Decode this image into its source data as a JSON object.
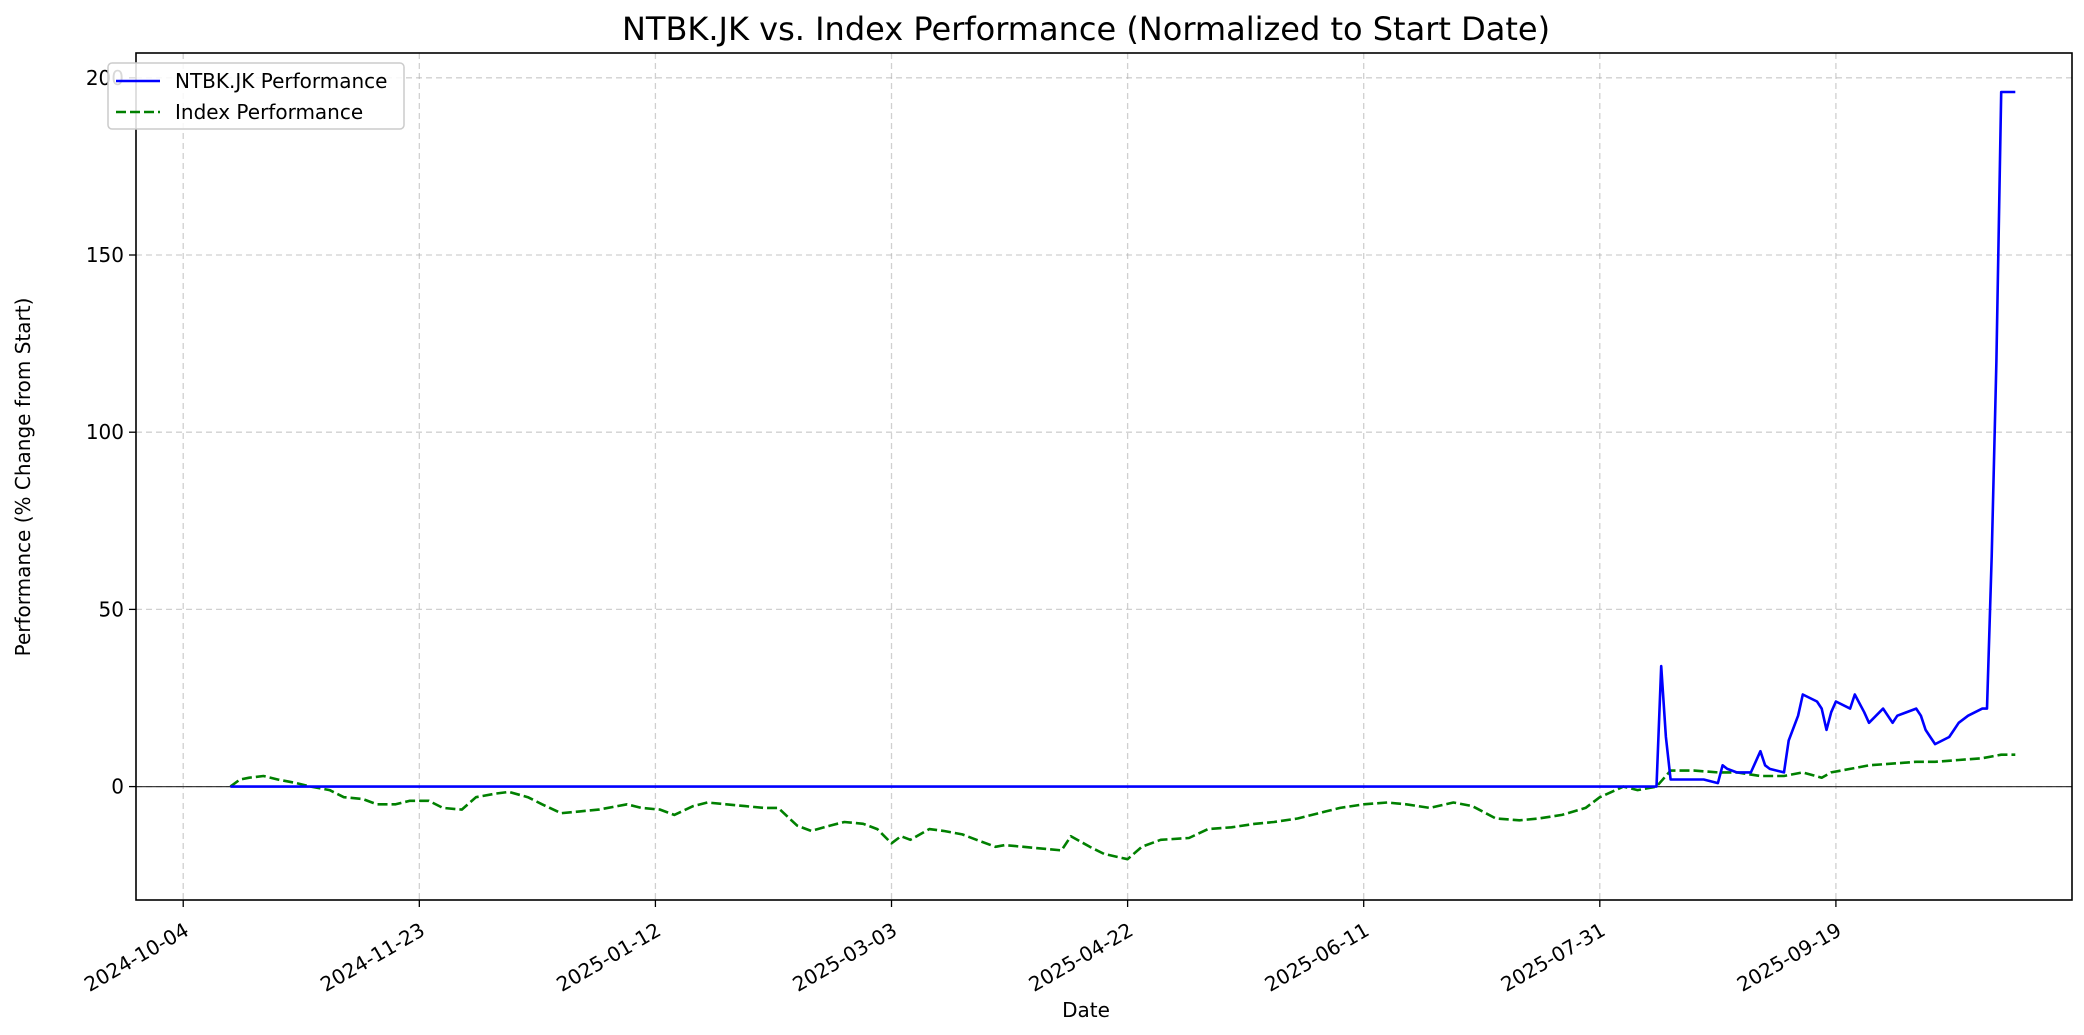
{
  "chart_data": {
    "type": "line",
    "title": "NTBK.JK vs. Index Performance (Normalized to Start Date)",
    "xlabel": "Date",
    "ylabel": "Performance (% Change from Start)",
    "xlim": [
      "2024-09-24",
      "2025-11-08"
    ],
    "ylim": [
      -32,
      207
    ],
    "x_ticks": [
      "2024-10-04",
      "2024-11-23",
      "2025-01-12",
      "2025-03-03",
      "2025-04-22",
      "2025-06-11",
      "2025-07-31",
      "2025-09-19"
    ],
    "y_ticks": [
      0,
      50,
      100,
      150,
      200
    ],
    "grid": true,
    "zero_line": true,
    "legend": "top-left",
    "series": [
      {
        "name": "NTBK.JK Performance",
        "color": "#0000ff",
        "style": "solid",
        "x": [
          "2024-10-14",
          "2025-08-12",
          "2025-08-13",
          "2025-08-14",
          "2025-08-15",
          "2025-08-18",
          "2025-08-20",
          "2025-08-22",
          "2025-08-25",
          "2025-08-26",
          "2025-08-27",
          "2025-08-29",
          "2025-09-01",
          "2025-09-03",
          "2025-09-04",
          "2025-09-05",
          "2025-09-08",
          "2025-09-09",
          "2025-09-11",
          "2025-09-12",
          "2025-09-15",
          "2025-09-16",
          "2025-09-17",
          "2025-09-18",
          "2025-09-19",
          "2025-09-22",
          "2025-09-23",
          "2025-09-25",
          "2025-09-26",
          "2025-09-29",
          "2025-10-01",
          "2025-10-02",
          "2025-10-06",
          "2025-10-07",
          "2025-10-08",
          "2025-10-09",
          "2025-10-10",
          "2025-10-13",
          "2025-10-14",
          "2025-10-15",
          "2025-10-17",
          "2025-10-20",
          "2025-10-21",
          "2025-10-22",
          "2025-10-23",
          "2025-10-24",
          "2025-10-27"
        ],
        "y": [
          0,
          0,
          34,
          14,
          2,
          2,
          2,
          2,
          1,
          6,
          5,
          4,
          4,
          10,
          6,
          5,
          4,
          13,
          20,
          26,
          24,
          22,
          16,
          21,
          24,
          22,
          26,
          21,
          18,
          22,
          18,
          20,
          22,
          20,
          16,
          14,
          12,
          14,
          16,
          18,
          20,
          22,
          22,
          65,
          120,
          196,
          196
        ],
        "x_extra_note": ""
      },
      {
        "name": "Index Performance",
        "color": "#008000",
        "style": "dashed",
        "x": [
          "2024-10-14",
          "2024-10-16",
          "2024-10-18",
          "2024-10-21",
          "2024-10-24",
          "2024-10-28",
          "2024-10-31",
          "2024-11-04",
          "2024-11-07",
          "2024-11-11",
          "2024-11-14",
          "2024-11-18",
          "2024-11-21",
          "2024-11-25",
          "2024-11-28",
          "2024-12-02",
          "2024-12-05",
          "2024-12-09",
          "2024-12-12",
          "2024-12-16",
          "2024-12-19",
          "2024-12-23",
          "2024-12-27",
          "2024-12-31",
          "2025-01-06",
          "2025-01-09",
          "2025-01-13",
          "2025-01-16",
          "2025-01-20",
          "2025-01-23",
          "2025-01-27",
          "2025-01-31",
          "2025-02-04",
          "2025-02-07",
          "2025-02-11",
          "2025-02-14",
          "2025-02-18",
          "2025-02-21",
          "2025-02-25",
          "2025-02-28",
          "2025-03-03",
          "2025-03-05",
          "2025-03-07",
          "2025-03-11",
          "2025-03-14",
          "2025-03-18",
          "2025-03-21",
          "2025-03-25",
          "2025-03-27",
          "2025-04-08",
          "2025-04-10",
          "2025-04-14",
          "2025-04-17",
          "2025-04-22",
          "2025-04-25",
          "2025-04-29",
          "2025-05-05",
          "2025-05-09",
          "2025-05-14",
          "2025-05-19",
          "2025-05-23",
          "2025-05-28",
          "2025-06-03",
          "2025-06-06",
          "2025-06-11",
          "2025-06-16",
          "2025-06-20",
          "2025-06-25",
          "2025-06-30",
          "2025-07-04",
          "2025-07-09",
          "2025-07-14",
          "2025-07-18",
          "2025-07-23",
          "2025-07-28",
          "2025-07-31",
          "2025-08-05",
          "2025-08-08",
          "2025-08-12",
          "2025-08-15",
          "2025-08-20",
          "2025-08-25",
          "2025-08-29",
          "2025-09-03",
          "2025-09-08",
          "2025-09-12",
          "2025-09-16",
          "2025-09-18",
          "2025-09-22",
          "2025-09-26",
          "2025-10-01",
          "2025-10-06",
          "2025-10-10",
          "2025-10-15",
          "2025-10-20",
          "2025-10-24",
          "2025-10-27"
        ],
        "y": [
          0,
          2,
          2.5,
          3,
          2,
          1,
          0,
          -1,
          -3,
          -3.5,
          -5,
          -5,
          -4,
          -4,
          -6,
          -6.5,
          -3,
          -2,
          -1.5,
          -3,
          -5,
          -7.5,
          -7,
          -6.5,
          -5,
          -6,
          -6.5,
          -8,
          -5.5,
          -4.5,
          -5,
          -5.5,
          -6,
          -6,
          -11,
          -12.5,
          -11,
          -10,
          -10.5,
          -12,
          -16,
          -14,
          -15,
          -12,
          -12.5,
          -13.5,
          -15,
          -17,
          -16.5,
          -18,
          -14,
          -17,
          -19,
          -20.5,
          -17,
          -15,
          -14.5,
          -12,
          -11.5,
          -10.5,
          -10,
          -9,
          -7,
          -6,
          -5,
          -4.5,
          -5,
          -6,
          -4.5,
          -5.5,
          -9,
          -9.5,
          -9,
          -8,
          -6,
          -3,
          0,
          -1,
          0,
          4.5,
          4.5,
          4,
          4,
          3,
          3,
          4,
          2.5,
          4,
          5,
          6,
          6.5,
          7,
          7,
          7.5,
          8,
          9,
          9
        ]
      }
    ]
  }
}
